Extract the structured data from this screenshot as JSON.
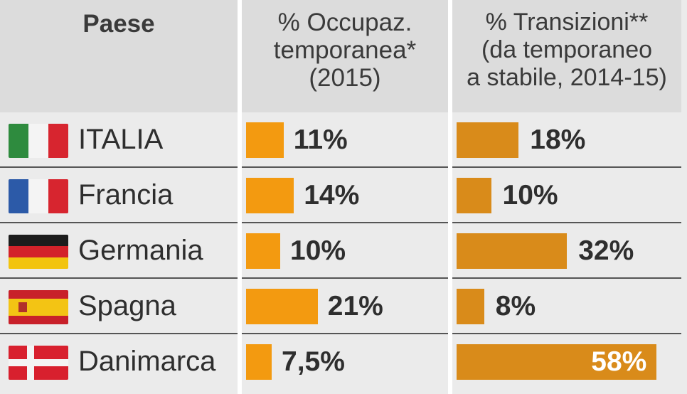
{
  "headers": {
    "country": "Paese",
    "temp_line1": "% Occupaz.",
    "temp_line2": "temporanea*",
    "temp_line3": "(2015)",
    "trans_line1": "% Transizioni**",
    "trans_line2": "(da temporaneo",
    "trans_line3": "a stabile, 2014-15)"
  },
  "rows": [
    {
      "country": "ITALIA",
      "flag": "italy-flag-icon",
      "temp_label": "11%",
      "trans_label": "18%"
    },
    {
      "country": "Francia",
      "flag": "france-flag-icon",
      "temp_label": "14%",
      "trans_label": "10%"
    },
    {
      "country": "Germania",
      "flag": "germany-flag-icon",
      "temp_label": "10%",
      "trans_label": "32%"
    },
    {
      "country": "Spagna",
      "flag": "spain-flag-icon",
      "temp_label": "21%",
      "trans_label": "8%"
    },
    {
      "country": "Danimarca",
      "flag": "denmark-flag-icon",
      "temp_label": "7,5%",
      "trans_label": "58%"
    }
  ],
  "colors": {
    "temp_bar": "#f39a10",
    "trans_bar": "#d98b1a",
    "header_bg": "#dcdcdc",
    "row_bg": "#ebebeb"
  },
  "chart_data": {
    "type": "bar",
    "categories": [
      "ITALIA",
      "Francia",
      "Germania",
      "Spagna",
      "Danimarca"
    ],
    "series": [
      {
        "name": "% Occupaz. temporanea* (2015)",
        "values": [
          11,
          14,
          10,
          21,
          7.5
        ]
      },
      {
        "name": "% Transizioni** (da temporaneo a stabile, 2014-15)",
        "values": [
          18,
          10,
          32,
          8,
          58
        ]
      }
    ],
    "orientation": "horizontal",
    "grid": false
  }
}
